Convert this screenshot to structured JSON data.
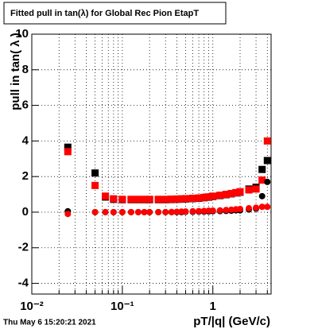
{
  "chart_data": {
    "type": "scatter",
    "title": "Fitted pull in tan(λ) for Global Rec Pion EtapT",
    "y_label": "pull in tan( λ )",
    "x_label": "pT/|q| (GeV/c)",
    "timestamp": "Thu May  6 15:20:21 2021",
    "x_log": true,
    "grid": true,
    "xlim": [
      0.01,
      4.4
    ],
    "ylim": [
      -4.6,
      10
    ],
    "xticks": [
      {
        "value": 0.01,
        "label": "10⁻²"
      },
      {
        "value": 0.1,
        "label": "10⁻¹"
      },
      1
    ],
    "xticks_minor": [
      0.02,
      0.03,
      0.04,
      0.05,
      0.06,
      0.07,
      0.08,
      0.09,
      0.2,
      0.3,
      0.4,
      0.5,
      0.6,
      0.7,
      0.8,
      0.9,
      2,
      3,
      4
    ],
    "yticks": [
      -4,
      -2,
      0,
      2,
      4,
      6,
      8,
      10
    ],
    "x": [
      0.025,
      0.05,
      0.065,
      0.08,
      0.1,
      0.125,
      0.15,
      0.175,
      0.2,
      0.25,
      0.3,
      0.35,
      0.4,
      0.45,
      0.5,
      0.6,
      0.7,
      0.8,
      0.9,
      1.0,
      1.2,
      1.4,
      1.6,
      1.8,
      2.0,
      2.5,
      3.0,
      3.5,
      4.0
    ],
    "series": [
      {
        "marker": "square",
        "color": "#000000",
        "values": [
          3.65,
          2.2,
          0.85,
          0.72,
          0.7,
          0.7,
          0.7,
          0.7,
          0.7,
          0.7,
          0.7,
          0.71,
          0.72,
          0.73,
          0.74,
          0.76,
          0.78,
          0.81,
          0.84,
          0.88,
          0.93,
          0.98,
          1.03,
          1.08,
          1.12,
          1.3,
          1.4,
          2.4,
          2.9
        ]
      },
      {
        "marker": "square",
        "color": "#ff0000",
        "values": [
          3.4,
          1.5,
          0.9,
          0.75,
          0.72,
          0.72,
          0.72,
          0.72,
          0.72,
          0.72,
          0.72,
          0.73,
          0.74,
          0.75,
          0.76,
          0.78,
          0.8,
          0.83,
          0.86,
          0.9,
          0.95,
          1.0,
          1.05,
          1.1,
          1.15,
          1.25,
          1.3,
          1.8,
          4.0
        ]
      },
      {
        "marker": "circle",
        "color": "#000000",
        "values": [
          0.05,
          0.0,
          0.0,
          0.0,
          0.0,
          0.0,
          0.0,
          0.0,
          0.0,
          0.0,
          0.0,
          0.0,
          0.0,
          0.0,
          0.02,
          0.02,
          0.03,
          0.03,
          0.04,
          0.05,
          0.06,
          0.07,
          0.08,
          0.1,
          0.1,
          0.15,
          0.2,
          0.9,
          1.7
        ]
      },
      {
        "marker": "circle",
        "color": "#ff0000",
        "values": [
          -0.1,
          0.0,
          0.0,
          0.0,
          0.0,
          0.0,
          0.0,
          0.0,
          0.0,
          0.0,
          0.0,
          0.01,
          0.02,
          0.03,
          0.04,
          0.05,
          0.06,
          0.07,
          0.08,
          0.09,
          0.1,
          0.12,
          0.14,
          0.16,
          0.18,
          0.22,
          0.25,
          0.3,
          0.3
        ]
      }
    ]
  }
}
